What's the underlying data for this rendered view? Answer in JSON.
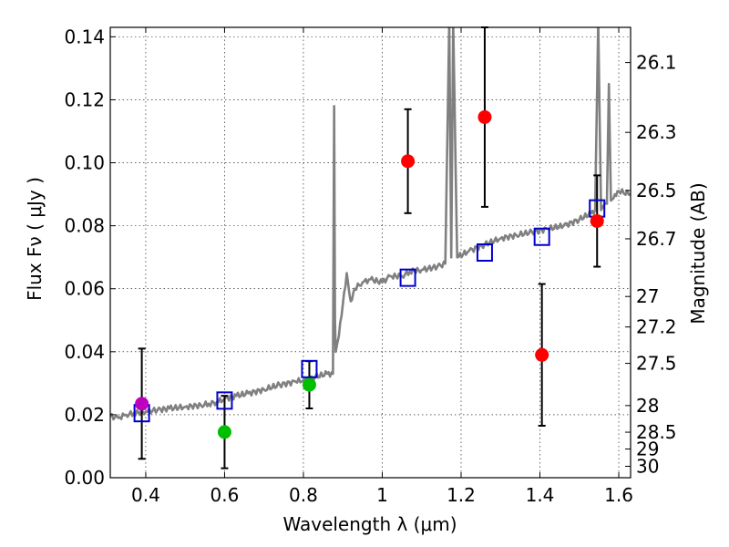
{
  "chart_data": {
    "type": "scatter",
    "xlabel": "Wavelength  λ (μm)",
    "ylabel_left": "Flux  Fν  ( μJy )",
    "ylabel_right": "Magnitude (AB)",
    "xlim": [
      0.31,
      1.63
    ],
    "ylim": [
      0.0,
      0.143
    ],
    "grid": true,
    "x_ticks": [
      0.4,
      0.6,
      0.8,
      1.0,
      1.2,
      1.4,
      1.6
    ],
    "x_tick_labels": [
      "0.4",
      "0.6",
      "0.8",
      "1",
      "1.2",
      "1.4",
      "1.6"
    ],
    "y_ticks": [
      0.0,
      0.02,
      0.04,
      0.06,
      0.08,
      0.1,
      0.12,
      0.14
    ],
    "y_tick_labels": [
      "0.00",
      "0.02",
      "0.04",
      "0.06",
      "0.08",
      "0.10",
      "0.12",
      "0.14"
    ],
    "mag_ticks": [
      26.1,
      26.3,
      26.5,
      26.7,
      27,
      27.2,
      27.5,
      28,
      28.5,
      29,
      30
    ],
    "mag_tick_labels": [
      "26.1",
      "26.3",
      "26.5",
      "26.7",
      "27",
      "27.2",
      "27.5",
      "28",
      "28.5",
      "29",
      "30"
    ],
    "series": [
      {
        "name": "observed_photometry",
        "marker": "circle",
        "points": [
          {
            "x": 0.39,
            "y": 0.0235,
            "yerr_low": 0.0175,
            "yerr_high": 0.0175,
            "color": "#bf00bf"
          },
          {
            "x": 0.6,
            "y": 0.0145,
            "yerr_low": 0.0115,
            "yerr_high": 0.0115,
            "color": "#00bf00"
          },
          {
            "x": 0.815,
            "y": 0.0295,
            "yerr_low": 0.0075,
            "yerr_high": 0.0075,
            "color": "#00bf00"
          },
          {
            "x": 1.065,
            "y": 0.1005,
            "yerr_low": 0.0165,
            "yerr_high": 0.0165,
            "color": "#ff0000"
          },
          {
            "x": 1.26,
            "y": 0.1145,
            "yerr_low": 0.0285,
            "yerr_high": 0.0285,
            "color": "#ff0000"
          },
          {
            "x": 1.405,
            "y": 0.039,
            "yerr_low": 0.0225,
            "yerr_high": 0.0225,
            "color": "#ff0000"
          },
          {
            "x": 1.545,
            "y": 0.0815,
            "yerr_low": 0.0145,
            "yerr_high": 0.0145,
            "color": "#ff0000"
          }
        ]
      },
      {
        "name": "model_bandpass_flux",
        "marker": "open-square",
        "color": "#0000cc",
        "points": [
          {
            "x": 0.39,
            "y": 0.0205
          },
          {
            "x": 0.6,
            "y": 0.0245
          },
          {
            "x": 0.815,
            "y": 0.0345
          },
          {
            "x": 1.065,
            "y": 0.0635
          },
          {
            "x": 1.26,
            "y": 0.0715
          },
          {
            "x": 1.405,
            "y": 0.0765
          },
          {
            "x": 1.545,
            "y": 0.0855
          }
        ]
      },
      {
        "name": "model_spectrum",
        "line": true,
        "color": "#808080",
        "x": [
          0.31,
          0.33,
          0.35,
          0.37,
          0.4,
          0.43,
          0.46,
          0.5,
          0.54,
          0.56,
          0.58,
          0.6,
          0.63,
          0.66,
          0.7,
          0.74,
          0.78,
          0.8,
          0.83,
          0.86,
          0.875,
          0.878,
          0.88,
          0.882,
          0.89,
          0.9,
          0.91,
          0.92,
          0.93,
          0.95,
          0.97,
          1.0,
          1.02,
          1.05,
          1.07,
          1.1,
          1.14,
          1.16,
          1.17,
          1.175,
          1.18,
          1.19,
          1.22,
          1.26,
          1.3,
          1.34,
          1.38,
          1.42,
          1.46,
          1.5,
          1.53,
          1.54,
          1.548,
          1.555,
          1.56,
          1.57,
          1.575,
          1.58,
          1.59,
          1.6,
          1.63
        ],
        "y": [
          0.0195,
          0.019,
          0.02,
          0.0205,
          0.021,
          0.0215,
          0.022,
          0.0225,
          0.023,
          0.0235,
          0.024,
          0.025,
          0.026,
          0.0268,
          0.028,
          0.0295,
          0.0305,
          0.031,
          0.032,
          0.033,
          0.033,
          0.118,
          0.05,
          0.04,
          0.045,
          0.055,
          0.065,
          0.056,
          0.06,
          0.062,
          0.063,
          0.062,
          0.064,
          0.064,
          0.0655,
          0.066,
          0.067,
          0.068,
          0.145,
          0.07,
          0.145,
          0.07,
          0.072,
          0.074,
          0.076,
          0.077,
          0.078,
          0.079,
          0.08,
          0.082,
          0.084,
          0.085,
          0.145,
          0.085,
          0.086,
          0.087,
          0.125,
          0.088,
          0.09,
          0.091,
          0.09
        ]
      }
    ]
  }
}
